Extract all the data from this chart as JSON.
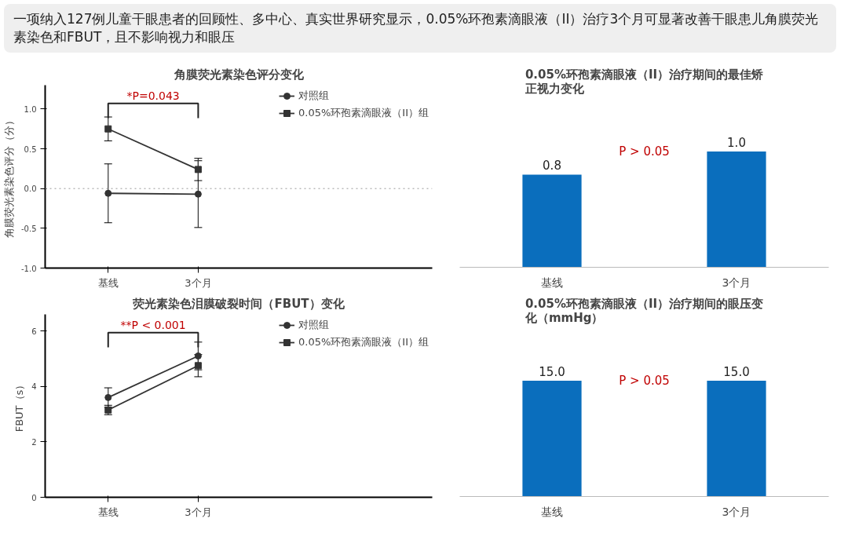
{
  "chart_data": [
    {
      "type": "line",
      "title": "角膜荧光素染色评分变化",
      "ylabel": "角膜荧光素染色评分（分）",
      "categories": [
        "基线",
        "3个月"
      ],
      "annotations": [
        "一项纳入127例儿童干眼患者的回顾性、多中心、真实世界研究显示，0.05%环孢素滴眼液（II）治疗3个月可显著改善干眼患儿角膜荧光素染色和FBUT，且不影响视力和眼压",
        "*P=0.043"
      ],
      "series": [
        {
          "name": "对照组",
          "color": "#333333",
          "marker": "circle",
          "values": [
            -0.06,
            -0.07
          ],
          "errors": [
            0.37,
            0.42
          ]
        },
        {
          "name": "0.05%环孢素滴眼液（II）组",
          "color": "#333333",
          "marker": "square",
          "values": [
            0.75,
            0.24
          ],
          "errors": [
            0.15,
            0.14
          ]
        }
      ],
      "ylim": [
        -1,
        1.3
      ],
      "yticks": [
        {
          "value": -1,
          "label": "-1.0"
        },
        {
          "value": -0.5,
          "label": "-0.5"
        },
        {
          "value": 0,
          "label": "0.0"
        },
        {
          "value": 0.5,
          "label": "0.5"
        },
        {
          "value": 1,
          "label": "1.0"
        }
      ],
      "ref_lines": [
        {
          "axis": "y",
          "value": 0,
          "color": "#999999",
          "line_style": "dotted"
        }
      ],
      "legend": "top right",
      "grid": false
    },
    {
      "type": "bar",
      "title": "0.05%环孢素滴眼液（II）治疗期间的最佳矫正视力变化",
      "categories": [
        "基线",
        "3个月"
      ],
      "values": [
        0.8,
        1.0
      ],
      "color": "#0a6ebd",
      "value_labels": [
        "0.8",
        "1.0"
      ],
      "annotations": [
        "P > 0.05"
      ]
    },
    {
      "type": "line",
      "title": "荧光素染色泪膜破裂时间（FBUT）变化",
      "ylabel": "FBUT（s）",
      "categories": [
        "基线",
        "3个月"
      ],
      "annotations": [
        "**P < 0.001"
      ],
      "series": [
        {
          "name": "对照组",
          "color": "#333333",
          "marker": "circle",
          "values": [
            3.6,
            5.1
          ],
          "errors": [
            0.35,
            0.5
          ]
        },
        {
          "name": "0.05%环孢素滴眼液（II）组",
          "color": "#333333",
          "marker": "square",
          "values": [
            3.15,
            4.75
          ],
          "errors": [
            0.17,
            0.4
          ]
        }
      ],
      "ylim": [
        0,
        6.6
      ],
      "yticks": [
        0,
        2,
        4,
        6
      ],
      "legend": "top right",
      "grid": false
    },
    {
      "type": "bar",
      "title": "0.05%环孢素滴眼液（II）治疗期间的眼压变化（mmHg）",
      "categories": [
        "基线",
        "3个月"
      ],
      "values": [
        15.0,
        15.0
      ],
      "color": "#0a6ebd",
      "value_labels": [
        "15.0",
        "15.0"
      ],
      "annotations": [
        "P > 0.05"
      ]
    }
  ]
}
